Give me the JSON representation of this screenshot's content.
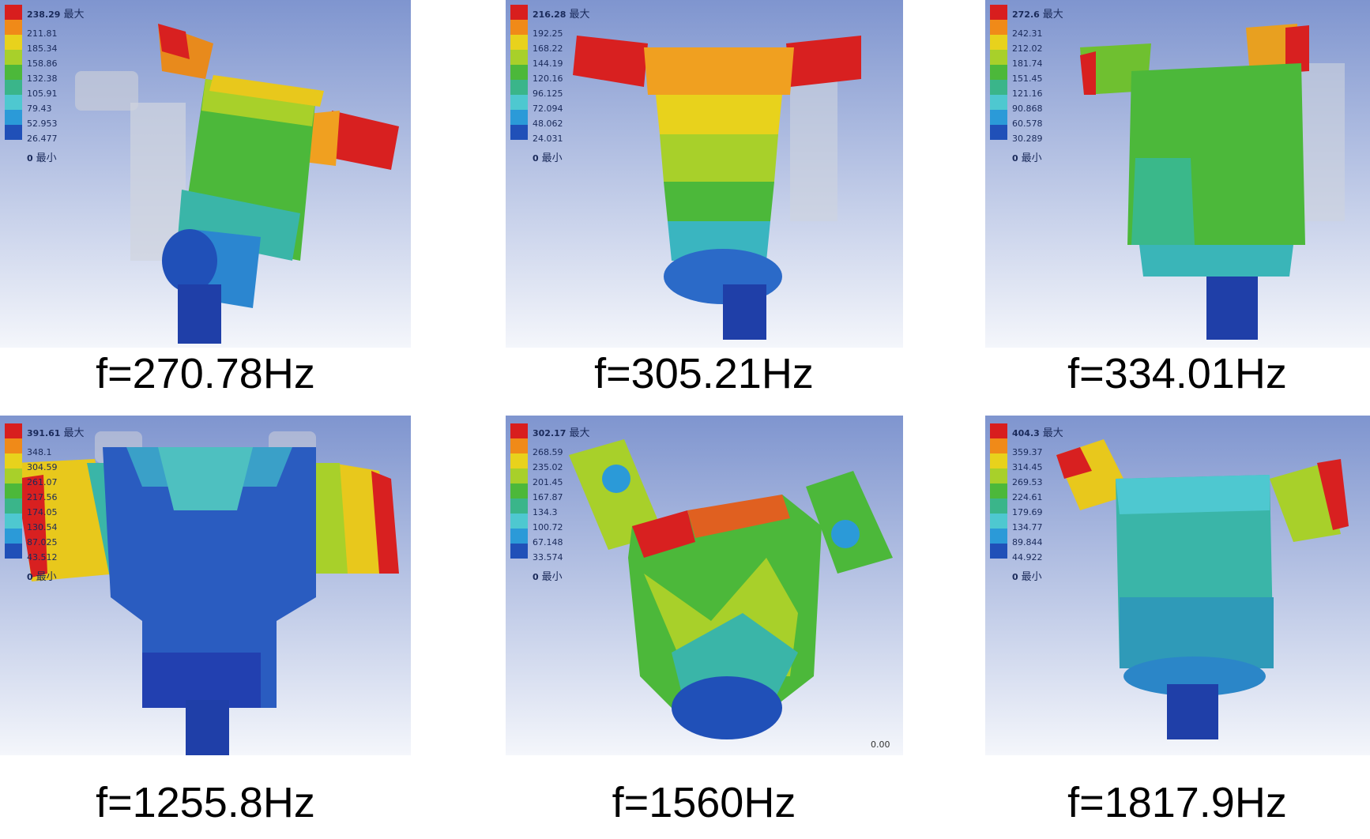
{
  "legend_colors": [
    "#d81e1e",
    "#f08a18",
    "#e8d21c",
    "#a8d02a",
    "#4cb83a",
    "#3ab58a",
    "#4ec8d0",
    "#2b9ad8",
    "#2050b8"
  ],
  "panels": [
    {
      "max_label": "最大",
      "min_label": "最小",
      "values": [
        "238.29",
        "211.81",
        "185.34",
        "158.86",
        "132.38",
        "105.91",
        "79.43",
        "52.953",
        "26.477",
        "0"
      ],
      "caption": "f=270.78Hz"
    },
    {
      "max_label": "最大",
      "min_label": "最小",
      "values": [
        "216.28",
        "192.25",
        "168.22",
        "144.19",
        "120.16",
        "96.125",
        "72.094",
        "48.062",
        "24.031",
        "0"
      ],
      "caption": "f=305.21Hz"
    },
    {
      "max_label": "最大",
      "min_label": "最小",
      "values": [
        "272.6",
        "242.31",
        "212.02",
        "181.74",
        "151.45",
        "121.16",
        "90.868",
        "60.578",
        "30.289",
        "0"
      ],
      "caption": "f=334.01Hz"
    },
    {
      "max_label": "最大",
      "min_label": "最小",
      "values": [
        "391.61",
        "348.1",
        "304.59",
        "261.07",
        "217.56",
        "174.05",
        "130.54",
        "87.025",
        "43.512",
        "0"
      ],
      "caption": "f=1255.8Hz"
    },
    {
      "max_label": "最大",
      "min_label": "最小",
      "values": [
        "302.17",
        "268.59",
        "235.02",
        "201.45",
        "167.87",
        "134.3",
        "100.72",
        "67.148",
        "33.574",
        "0"
      ],
      "caption": "f=1560Hz",
      "corner_value": "0.00"
    },
    {
      "max_label": "最大",
      "min_label": "最小",
      "values": [
        "404.3",
        "359.37",
        "314.45",
        "269.53",
        "224.61",
        "179.69",
        "134.77",
        "89.844",
        "44.922",
        "0"
      ],
      "caption": "f=1817.9Hz"
    }
  ]
}
